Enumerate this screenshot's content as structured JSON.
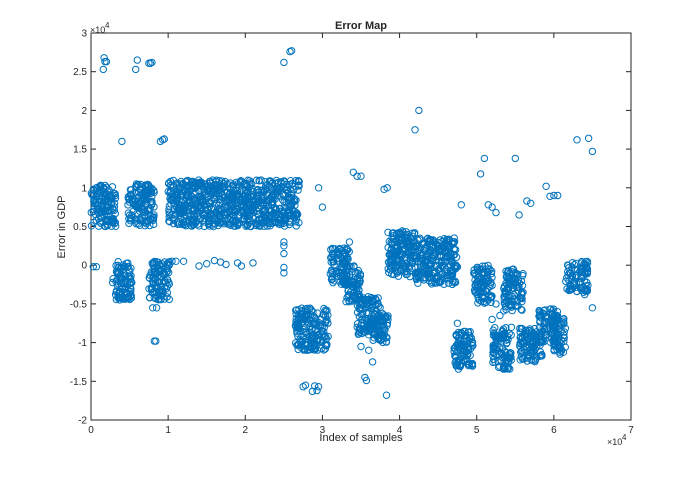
{
  "chart_data": {
    "type": "scatter",
    "title": "Error Map",
    "xlabel": "Index of samples",
    "ylabel": "Error in GDP",
    "xlim": [
      0,
      70000
    ],
    "ylim": [
      -20000,
      30000
    ],
    "x_ticks": [
      0,
      10000,
      20000,
      30000,
      40000,
      50000,
      60000,
      70000
    ],
    "x_tick_labels": [
      "0",
      "1",
      "2",
      "3",
      "4",
      "5",
      "6",
      "7"
    ],
    "x_exponent_label": "×10",
    "x_exponent_power": "4",
    "y_ticks": [
      -20000,
      -15000,
      -10000,
      -5000,
      0,
      5000,
      10000,
      15000,
      20000,
      25000,
      30000
    ],
    "y_tick_labels": [
      "-2",
      "-1.5",
      "-1",
      "-0.5",
      "0",
      "0.5",
      "1",
      "1.5",
      "2",
      "2.5",
      "3"
    ],
    "y_exponent_label": "×10",
    "y_exponent_power": "4",
    "grid": false,
    "marker": "open-circle",
    "marker_color": "#0072BD",
    "dense_regions": [
      {
        "x_range": [
          0,
          3200
        ],
        "y_range": [
          5000,
          10500
        ]
      },
      {
        "x_range": [
          2800,
          5300
        ],
        "y_range": [
          -4500,
          500
        ]
      },
      {
        "x_range": [
          4800,
          8200
        ],
        "y_range": [
          5000,
          10500
        ]
      },
      {
        "x_range": [
          7500,
          10200
        ],
        "y_range": [
          -4500,
          500
        ]
      },
      {
        "x_range": [
          10000,
          27000
        ],
        "y_range": [
          5000,
          11000
        ]
      },
      {
        "x_range": [
          26500,
          30800
        ],
        "y_range": [
          -11000,
          -5500
        ]
      },
      {
        "x_range": [
          31000,
          33500
        ],
        "y_range": [
          -2500,
          2500
        ]
      },
      {
        "x_range": [
          33000,
          35000
        ],
        "y_range": [
          -5000,
          0
        ]
      },
      {
        "x_range": [
          34500,
          37500
        ],
        "y_range": [
          -9000,
          -4000
        ]
      },
      {
        "x_range": [
          36500,
          38500
        ],
        "y_range": [
          -10000,
          -6000
        ]
      },
      {
        "x_range": [
          38500,
          42000
        ],
        "y_range": [
          -1500,
          4500
        ]
      },
      {
        "x_range": [
          42000,
          47500
        ],
        "y_range": [
          -2500,
          3500
        ]
      },
      {
        "x_range": [
          47000,
          49500
        ],
        "y_range": [
          -13500,
          -8500
        ]
      },
      {
        "x_range": [
          49500,
          52000
        ],
        "y_range": [
          -5000,
          0
        ]
      },
      {
        "x_range": [
          52000,
          54500
        ],
        "y_range": [
          -13500,
          -8000
        ]
      },
      {
        "x_range": [
          53500,
          56000
        ],
        "y_range": [
          -6000,
          -500
        ]
      },
      {
        "x_range": [
          55500,
          58500
        ],
        "y_range": [
          -12500,
          -8000
        ]
      },
      {
        "x_range": [
          58000,
          60500
        ],
        "y_range": [
          -10000,
          -5500
        ]
      },
      {
        "x_range": [
          60000,
          61500
        ],
        "y_range": [
          -11500,
          -6500
        ]
      },
      {
        "x_range": [
          61500,
          64500
        ],
        "y_range": [
          -3500,
          500
        ]
      }
    ],
    "scattered_points": [
      [
        300,
        -200
      ],
      [
        700,
        -200
      ],
      [
        1700,
        26800
      ],
      [
        1800,
        26300
      ],
      [
        2000,
        26300
      ],
      [
        1600,
        25300
      ],
      [
        4000,
        16000
      ],
      [
        6000,
        26500
      ],
      [
        5800,
        25300
      ],
      [
        7500,
        26100
      ],
      [
        7700,
        26100
      ],
      [
        7900,
        26200
      ],
      [
        9000,
        16000
      ],
      [
        9500,
        16300
      ],
      [
        9300,
        16200
      ],
      [
        8500,
        -5500
      ],
      [
        8000,
        -5500
      ],
      [
        8400,
        -9800
      ],
      [
        8200,
        -9800
      ],
      [
        10500,
        500
      ],
      [
        11000,
        500
      ],
      [
        12000,
        500
      ],
      [
        14000,
        -100
      ],
      [
        15000,
        200
      ],
      [
        16000,
        600
      ],
      [
        16800,
        400
      ],
      [
        17500,
        100
      ],
      [
        19000,
        300
      ],
      [
        19500,
        -100
      ],
      [
        21000,
        300
      ],
      [
        25000,
        26200
      ],
      [
        25800,
        27600
      ],
      [
        26000,
        27700
      ],
      [
        25000,
        3000
      ],
      [
        25000,
        2500
      ],
      [
        25000,
        1500
      ],
      [
        25000,
        -300
      ],
      [
        25000,
        -1000
      ],
      [
        27800,
        -15500
      ],
      [
        27500,
        -15700
      ],
      [
        29000,
        -15600
      ],
      [
        29500,
        -15700
      ],
      [
        28700,
        -16300
      ],
      [
        29300,
        -16200
      ],
      [
        29500,
        10000
      ],
      [
        30000,
        7500
      ],
      [
        33500,
        3000
      ],
      [
        34000,
        12000
      ],
      [
        34500,
        11500
      ],
      [
        35000,
        11500
      ],
      [
        35500,
        -14500
      ],
      [
        35700,
        -14900
      ],
      [
        36500,
        -12500
      ],
      [
        35000,
        -10500
      ],
      [
        36000,
        -11000
      ],
      [
        38000,
        9800
      ],
      [
        38400,
        10000
      ],
      [
        38300,
        -16800
      ],
      [
        42000,
        17500
      ],
      [
        42500,
        20000
      ],
      [
        47500,
        -7500
      ],
      [
        48000,
        7800
      ],
      [
        50500,
        11800
      ],
      [
        51000,
        13800
      ],
      [
        51500,
        7800
      ],
      [
        52000,
        7500
      ],
      [
        52500,
        6800
      ],
      [
        51500,
        -4500
      ],
      [
        52500,
        -5000
      ],
      [
        52000,
        -7000
      ],
      [
        53000,
        -6500
      ],
      [
        55000,
        13800
      ],
      [
        55500,
        6500
      ],
      [
        56500,
        8300
      ],
      [
        57000,
        8000
      ],
      [
        59000,
        10200
      ],
      [
        59500,
        8900
      ],
      [
        60000,
        9000
      ],
      [
        60500,
        9000
      ],
      [
        63000,
        16200
      ],
      [
        64500,
        16400
      ],
      [
        65000,
        14700
      ],
      [
        64000,
        -3800
      ],
      [
        65000,
        -5500
      ]
    ]
  }
}
